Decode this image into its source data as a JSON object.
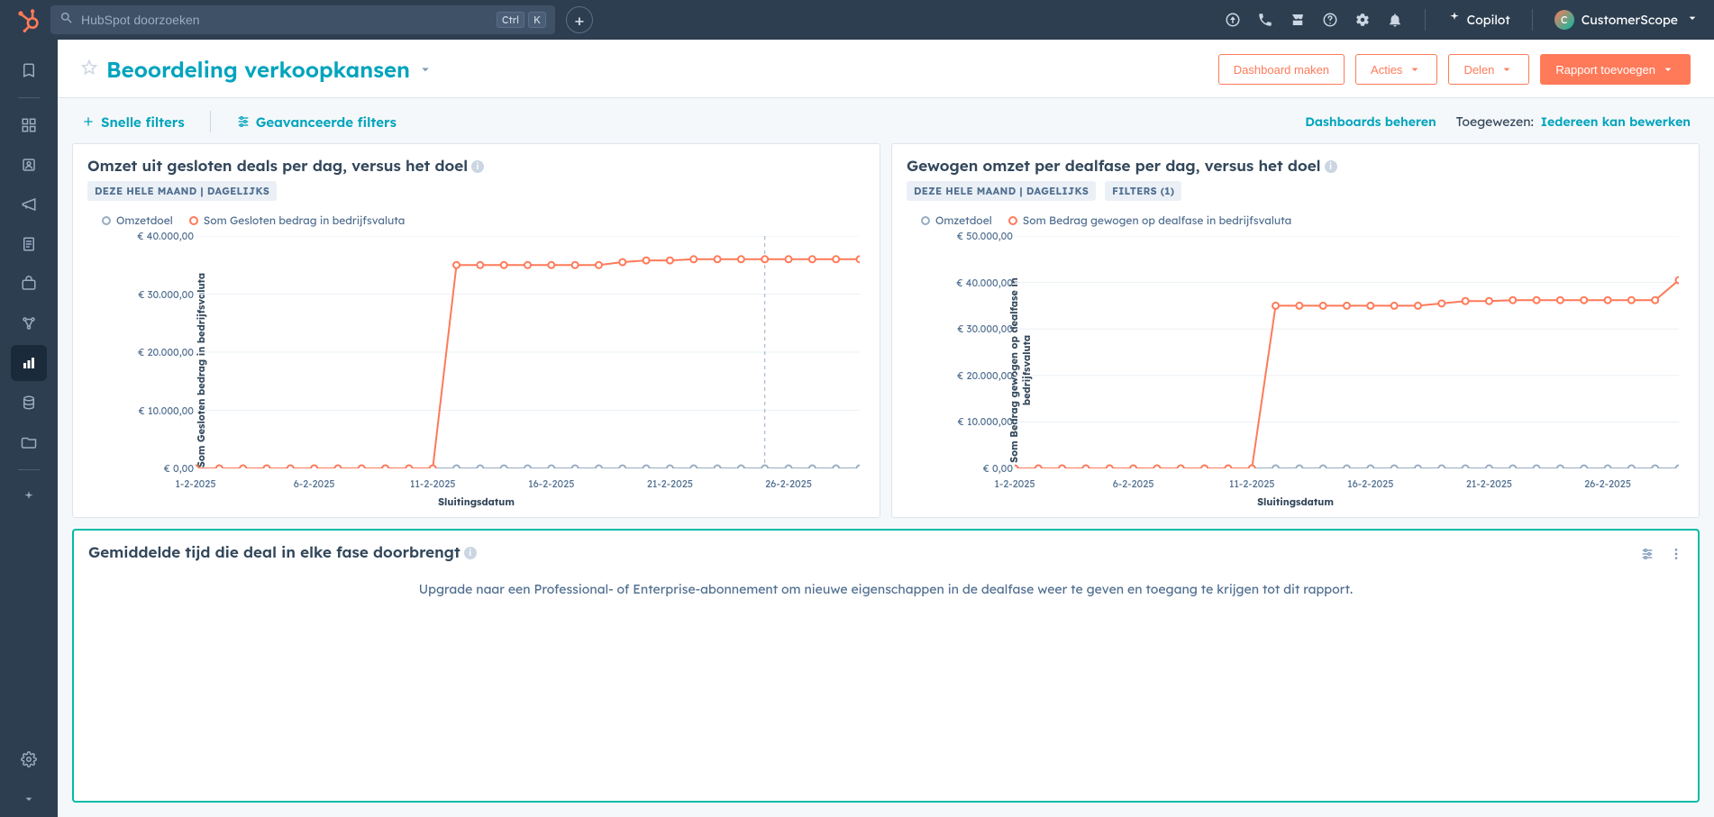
{
  "topnav": {
    "search_placeholder": "HubSpot doorzoeken",
    "kbd1": "Ctrl",
    "kbd2": "K",
    "copilot": "Copilot",
    "account": "CustomerScope"
  },
  "pagehead": {
    "title": "Beoordeling verkoopkansen",
    "create": "Dashboard maken",
    "actions": "Acties",
    "share": "Delen",
    "add_report": "Rapport toevoegen"
  },
  "filtersbar": {
    "quick": "Snelle filters",
    "advanced": "Geavanceerde filters",
    "manage": "Dashboards beheren",
    "assigned_label": "Toegewezen:",
    "assigned_value": "Iedereen kan bewerken"
  },
  "card1": {
    "title": "Omzet uit gesloten deals per dag, versus het doel",
    "badge1": "DEZE HELE MAAND | DAGELIJKS",
    "legend1": "Omzetdoel",
    "legend2": "Som Gesloten bedrag in bedrijfsvaluta",
    "ylabel": "Som Gesloten bedrag in bedrijfsvaluta",
    "xlabel": "Sluitingsdatum",
    "yticks": [
      "€ 0,00",
      "€ 10.000,00",
      "€ 20.000,00",
      "€ 30.000,00",
      "€ 40.000,00"
    ],
    "ymax": 40000,
    "xticks_labels": [
      "1-2-2025",
      "6-2-2025",
      "11-2-2025",
      "16-2-2025",
      "21-2-2025",
      "26-2-2025"
    ],
    "xticks_days": [
      1,
      6,
      11,
      16,
      21,
      26
    ],
    "xmin": 1,
    "xmax": 29,
    "today_day": 25,
    "series_goal": {
      "color": "#99acc2",
      "data": [
        [
          1,
          0
        ],
        [
          2,
          0
        ],
        [
          3,
          0
        ],
        [
          4,
          0
        ],
        [
          5,
          0
        ],
        [
          6,
          0
        ],
        [
          7,
          0
        ],
        [
          8,
          0
        ],
        [
          9,
          0
        ],
        [
          10,
          0
        ],
        [
          11,
          0
        ],
        [
          12,
          0
        ],
        [
          13,
          0
        ],
        [
          14,
          0
        ],
        [
          15,
          0
        ],
        [
          16,
          0
        ],
        [
          17,
          0
        ],
        [
          18,
          0
        ],
        [
          19,
          0
        ],
        [
          20,
          0
        ],
        [
          21,
          0
        ],
        [
          22,
          0
        ],
        [
          23,
          0
        ],
        [
          24,
          0
        ],
        [
          25,
          0
        ],
        [
          26,
          0
        ],
        [
          27,
          0
        ],
        [
          28,
          0
        ],
        [
          29,
          0
        ]
      ]
    },
    "series_closed": {
      "color": "#ff7a59",
      "data": [
        [
          1,
          0
        ],
        [
          2,
          0
        ],
        [
          3,
          0
        ],
        [
          4,
          0
        ],
        [
          5,
          0
        ],
        [
          6,
          0
        ],
        [
          7,
          0
        ],
        [
          8,
          0
        ],
        [
          9,
          0
        ],
        [
          10,
          0
        ],
        [
          11,
          0
        ],
        [
          12,
          35000
        ],
        [
          13,
          35000
        ],
        [
          14,
          35000
        ],
        [
          15,
          35000
        ],
        [
          16,
          35000
        ],
        [
          17,
          35000
        ],
        [
          18,
          35000
        ],
        [
          19,
          35500
        ],
        [
          20,
          35800
        ],
        [
          21,
          35800
        ],
        [
          22,
          36000
        ],
        [
          23,
          36000
        ],
        [
          24,
          36000
        ],
        [
          25,
          36000
        ],
        [
          26,
          36000
        ],
        [
          27,
          36000
        ],
        [
          28,
          36000
        ],
        [
          29,
          36000
        ]
      ]
    }
  },
  "card2": {
    "title": "Gewogen omzet per dealfase per dag, versus het doel",
    "badge1": "DEZE HELE MAAND | DAGELIJKS",
    "badge2": "FILTERS (1)",
    "legend1": "Omzetdoel",
    "legend2": "Som Bedrag gewogen op dealfase in bedrijfsvaluta",
    "ylabel": "Som Bedrag gewogen op dealfase in\nbedrijfsvaluta",
    "xlabel": "Sluitingsdatum",
    "yticks": [
      "€ 0,00",
      "€ 10.000,00",
      "€ 20.000,00",
      "€ 30.000,00",
      "€ 40.000,00",
      "€ 50.000,00"
    ],
    "ymax": 50000,
    "xticks_labels": [
      "1-2-2025",
      "6-2-2025",
      "11-2-2025",
      "16-2-2025",
      "21-2-2025",
      "26-2-2025"
    ],
    "xticks_days": [
      1,
      6,
      11,
      16,
      21,
      26
    ],
    "xmin": 1,
    "xmax": 29,
    "series_goal": {
      "color": "#99acc2",
      "data": [
        [
          1,
          0
        ],
        [
          2,
          0
        ],
        [
          3,
          0
        ],
        [
          4,
          0
        ],
        [
          5,
          0
        ],
        [
          6,
          0
        ],
        [
          7,
          0
        ],
        [
          8,
          0
        ],
        [
          9,
          0
        ],
        [
          10,
          0
        ],
        [
          11,
          0
        ],
        [
          12,
          0
        ],
        [
          13,
          0
        ],
        [
          14,
          0
        ],
        [
          15,
          0
        ],
        [
          16,
          0
        ],
        [
          17,
          0
        ],
        [
          18,
          0
        ],
        [
          19,
          0
        ],
        [
          20,
          0
        ],
        [
          21,
          0
        ],
        [
          22,
          0
        ],
        [
          23,
          0
        ],
        [
          24,
          0
        ],
        [
          25,
          0
        ],
        [
          26,
          0
        ],
        [
          27,
          0
        ],
        [
          28,
          0
        ],
        [
          29,
          0
        ]
      ]
    },
    "series_weighted": {
      "color": "#ff7a59",
      "data": [
        [
          1,
          0
        ],
        [
          2,
          0
        ],
        [
          3,
          0
        ],
        [
          4,
          0
        ],
        [
          5,
          0
        ],
        [
          6,
          0
        ],
        [
          7,
          0
        ],
        [
          8,
          0
        ],
        [
          9,
          0
        ],
        [
          10,
          0
        ],
        [
          11,
          0
        ],
        [
          12,
          35000
        ],
        [
          13,
          35000
        ],
        [
          14,
          35000
        ],
        [
          15,
          35000
        ],
        [
          16,
          35000
        ],
        [
          17,
          35000
        ],
        [
          18,
          35000
        ],
        [
          19,
          35500
        ],
        [
          20,
          36000
        ],
        [
          21,
          36000
        ],
        [
          22,
          36200
        ],
        [
          23,
          36200
        ],
        [
          24,
          36200
        ],
        [
          25,
          36200
        ],
        [
          26,
          36200
        ],
        [
          27,
          36200
        ],
        [
          28,
          36200
        ],
        [
          29,
          40500
        ]
      ]
    }
  },
  "card3": {
    "title": "Gemiddelde tijd die deal in elke fase doorbrengt",
    "upgrade_text": "Upgrade naar een Professional- of Enterprise-abonnement om nieuwe eigenschappen in de dealfase weer te geven en toegang te krijgen tot dit rapport."
  },
  "colors": {
    "teal": "#00a4bd",
    "orange": "#ff7a59",
    "grid": "#dfe3eb",
    "goal_line": "#99acc2"
  }
}
